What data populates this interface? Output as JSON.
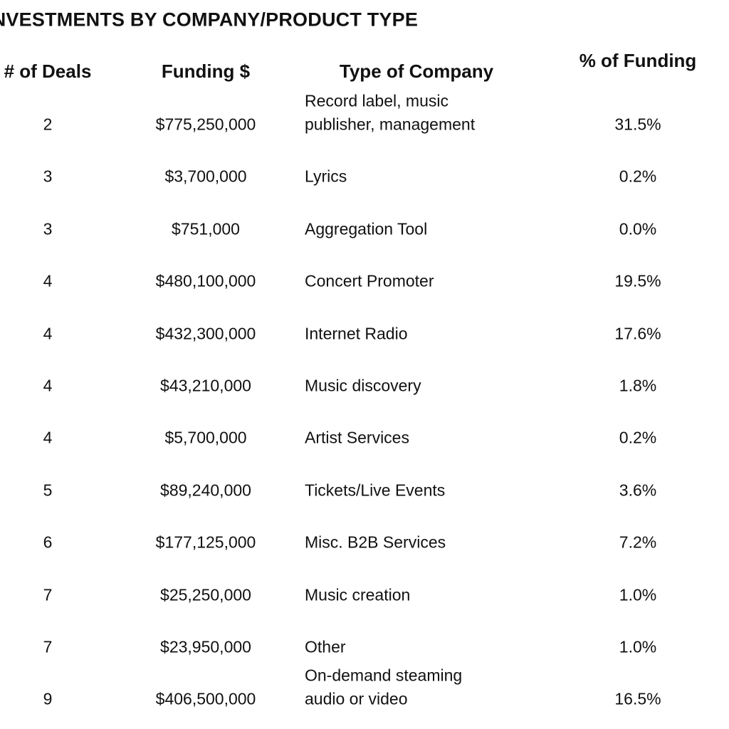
{
  "header": {
    "title": "INVESTMENTS BY COMPANY/PRODUCT TYPE"
  },
  "table": {
    "columns": [
      "# of Deals",
      "Funding $",
      "Type of Company",
      "% of Funding"
    ],
    "rows": [
      [
        "2",
        "$775,250,000",
        [
          "Record label, music",
          "publisher, management"
        ],
        "31.5%"
      ],
      [
        "3",
        "$3,700,000",
        "Lyrics",
        "0.2%"
      ],
      [
        "3",
        "$751,000",
        "Aggregation Tool",
        "0.0%"
      ],
      [
        "4",
        "$480,100,000",
        "Concert Promoter",
        "19.5%"
      ],
      [
        "4",
        "$432,300,000",
        "Internet Radio",
        "17.6%"
      ],
      [
        "4",
        "$43,210,000",
        "Music discovery",
        "1.8%"
      ],
      [
        "4",
        "$5,700,000",
        "Artist Services",
        "0.2%"
      ],
      [
        "5",
        "$89,240,000",
        "Tickets/Live Events",
        "3.6%"
      ],
      [
        "6",
        "$177,125,000",
        "Misc. B2B Services",
        "7.2%"
      ],
      [
        "7",
        "$25,250,000",
        "Music creation",
        "1.0%"
      ],
      [
        "7",
        "$23,950,000",
        "Other",
        "1.0%"
      ],
      [
        "9",
        "$406,500,000",
        [
          "On-demand steaming",
          "audio or video"
        ],
        "16.5%"
      ]
    ]
  }
}
